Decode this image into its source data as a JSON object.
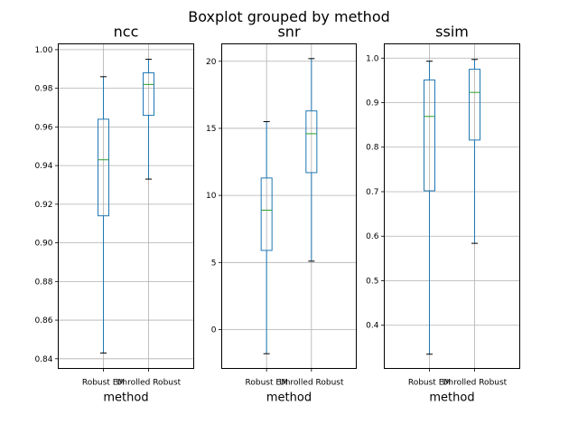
{
  "figure": {
    "title": "Boxplot grouped by method"
  },
  "style": {
    "box_color": "#1f77b4",
    "median_color": "#2ca02c",
    "grid_color": "#b0b0b0",
    "cap_color": "#000000"
  },
  "chart_data": [
    {
      "type": "box",
      "title": "ncc",
      "xlabel": "method",
      "ylabel": "",
      "categories": [
        "Robust EM",
        "Unrolled Robust"
      ],
      "ylim": [
        0.835,
        1.003
      ],
      "yticks": [
        0.84,
        0.86,
        0.88,
        0.9,
        0.92,
        0.94,
        0.96,
        0.98,
        1.0
      ],
      "ytick_labels": [
        "0.84",
        "0.86",
        "0.88",
        "0.90",
        "0.92",
        "0.94",
        "0.96",
        "0.98",
        "1.00"
      ],
      "grid": true,
      "boxes": [
        {
          "whislo": 0.843,
          "q1": 0.914,
          "med": 0.943,
          "q3": 0.964,
          "whishi": 0.986
        },
        {
          "whislo": 0.933,
          "q1": 0.966,
          "med": 0.982,
          "q3": 0.988,
          "whishi": 0.995
        }
      ]
    },
    {
      "type": "box",
      "title": "snr",
      "xlabel": "method",
      "ylabel": "",
      "categories": [
        "Robust EM",
        "Unrolled Robust"
      ],
      "ylim": [
        -2.9,
        21.3
      ],
      "yticks": [
        0,
        5,
        10,
        15,
        20
      ],
      "ytick_labels": [
        "0",
        "5",
        "10",
        "15",
        "20"
      ],
      "grid": true,
      "boxes": [
        {
          "whislo": -1.8,
          "q1": 5.9,
          "med": 8.9,
          "q3": 11.3,
          "whishi": 15.5
        },
        {
          "whislo": 5.1,
          "q1": 11.7,
          "med": 14.6,
          "q3": 16.3,
          "whishi": 20.2
        }
      ]
    },
    {
      "type": "box",
      "title": "ssim",
      "xlabel": "method",
      "ylabel": "",
      "categories": [
        "Robust EM",
        "Unrolled Robust"
      ],
      "ylim": [
        0.303,
        1.032
      ],
      "yticks": [
        0.4,
        0.5,
        0.6,
        0.7,
        0.8,
        0.9,
        1.0
      ],
      "ytick_labels": [
        "0.4",
        "0.5",
        "0.6",
        "0.7",
        "0.8",
        "0.9",
        "1.0"
      ],
      "grid": true,
      "boxes": [
        {
          "whislo": 0.335,
          "q1": 0.702,
          "med": 0.869,
          "q3": 0.951,
          "whishi": 0.993
        },
        {
          "whislo": 0.584,
          "q1": 0.816,
          "med": 0.923,
          "q3": 0.975,
          "whishi": 0.997
        }
      ]
    }
  ]
}
